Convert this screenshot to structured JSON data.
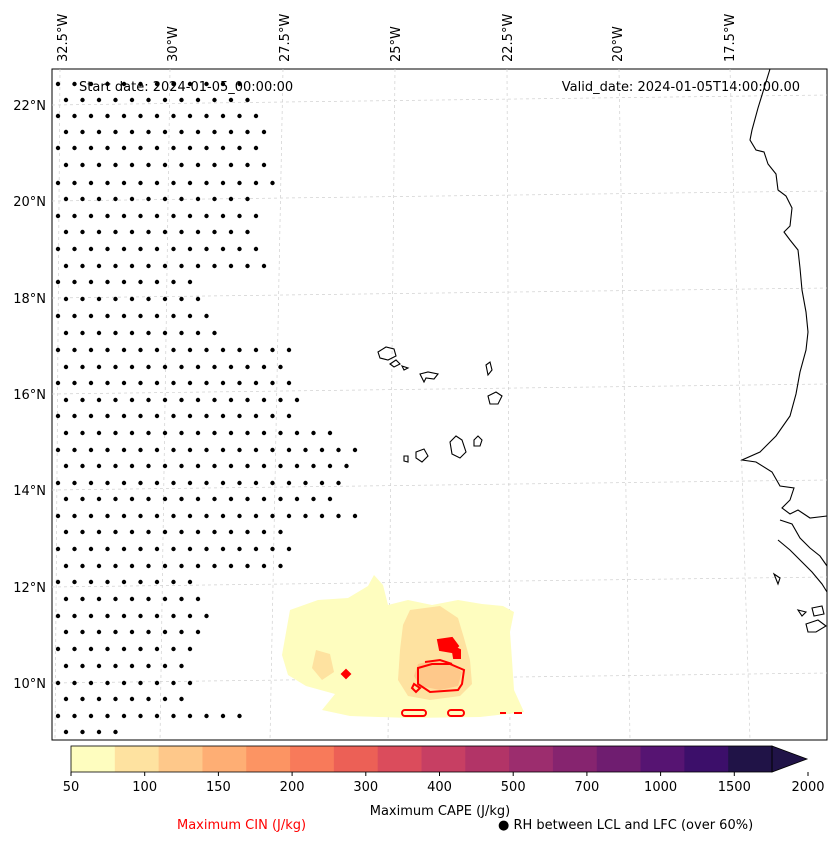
{
  "map": {
    "start_date": "Start date: 2024-01-05_00:00:00",
    "valid_date": "Valid_date: 2024-01-05T14:00:00.00",
    "lon_labels": [
      "32.5°W",
      "30°W",
      "27.5°W",
      "25°W",
      "22.5°W",
      "20°W",
      "17.5°W"
    ],
    "lat_labels": [
      "22°N",
      "20°N",
      "18°N",
      "16°N",
      "14°N",
      "12°N",
      "10°N"
    ]
  },
  "colorbar": {
    "label": "Maximum CAPE (J/kg)",
    "ticks": [
      "50",
      "100",
      "150",
      "200",
      "300",
      "400",
      "500",
      "700",
      "1000",
      "1500",
      "2000"
    ],
    "colors": [
      "#fefdbf",
      "#fee2a0",
      "#fec88a",
      "#feae74",
      "#fc9463",
      "#f87a5a",
      "#ec6056",
      "#db4c5c",
      "#c73f63",
      "#b23467",
      "#9c2d6e",
      "#86246f",
      "#6f1d70",
      "#561472",
      "#3c0f6a",
      "#201347"
    ]
  },
  "legend": {
    "cin_label": "Maximum CIN (J/kg)",
    "cin_color": "#ff0000",
    "rh_label": "RH between LCL and LFC (over 60%)",
    "rh_marker": "●"
  }
}
